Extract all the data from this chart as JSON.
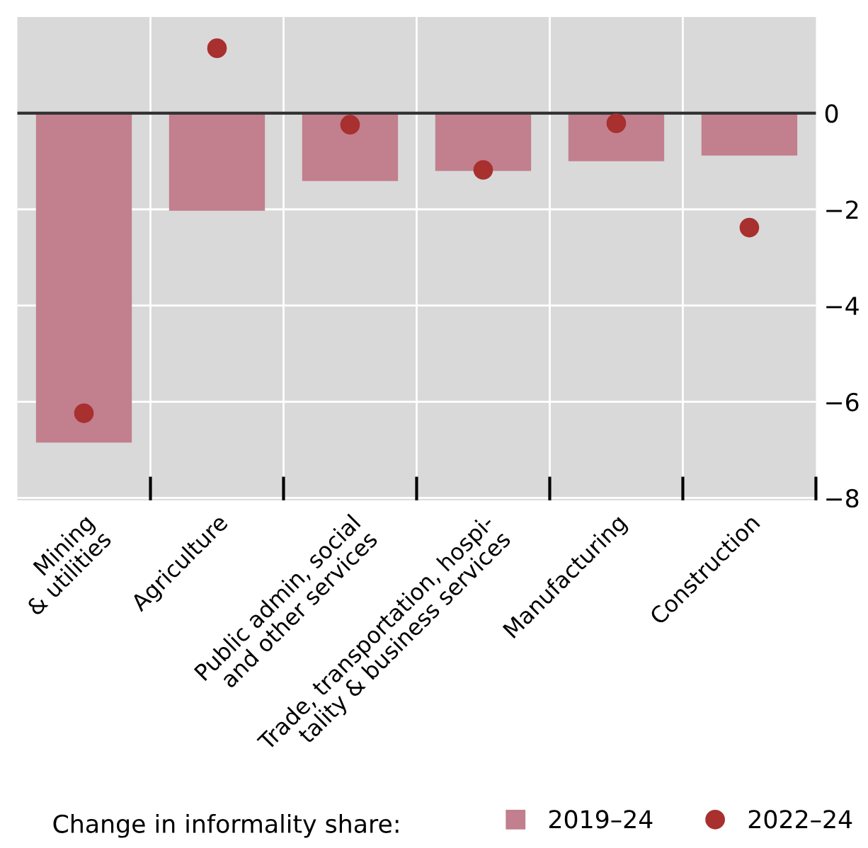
{
  "chart_data": {
    "type": "bar",
    "categories": [
      "Mining\n& utilities",
      "Agriculture",
      "Public admin, social\nand other services",
      "Trade, transportation, hospi-\ntality & business services",
      "Manufacturing",
      "Construction"
    ],
    "series": [
      {
        "name": "2019–24",
        "color": "#c27f8e",
        "values": [
          -6.85,
          -2.03,
          -1.41,
          -1.2,
          -1.0,
          -0.88
        ]
      },
      {
        "name": "2022–24",
        "type": "scatter",
        "color": "#a8302f",
        "values": [
          -6.24,
          1.35,
          -0.24,
          -1.18,
          -0.21,
          -2.38
        ]
      }
    ],
    "ylim": [
      -8.05,
      2.0
    ],
    "yticks": [
      {
        "value": 0,
        "label": "0"
      },
      {
        "value": -2,
        "label": "−2"
      },
      {
        "value": -4,
        "label": "−4"
      },
      {
        "value": -6,
        "label": "−6"
      },
      {
        "value": -8,
        "label": "−8"
      }
    ],
    "ref_lines": [
      {
        "axis": "y",
        "value": 0,
        "color": "#333333"
      }
    ],
    "grid": true,
    "legend": "bottom",
    "legend_title": "Change in informality share:"
  }
}
